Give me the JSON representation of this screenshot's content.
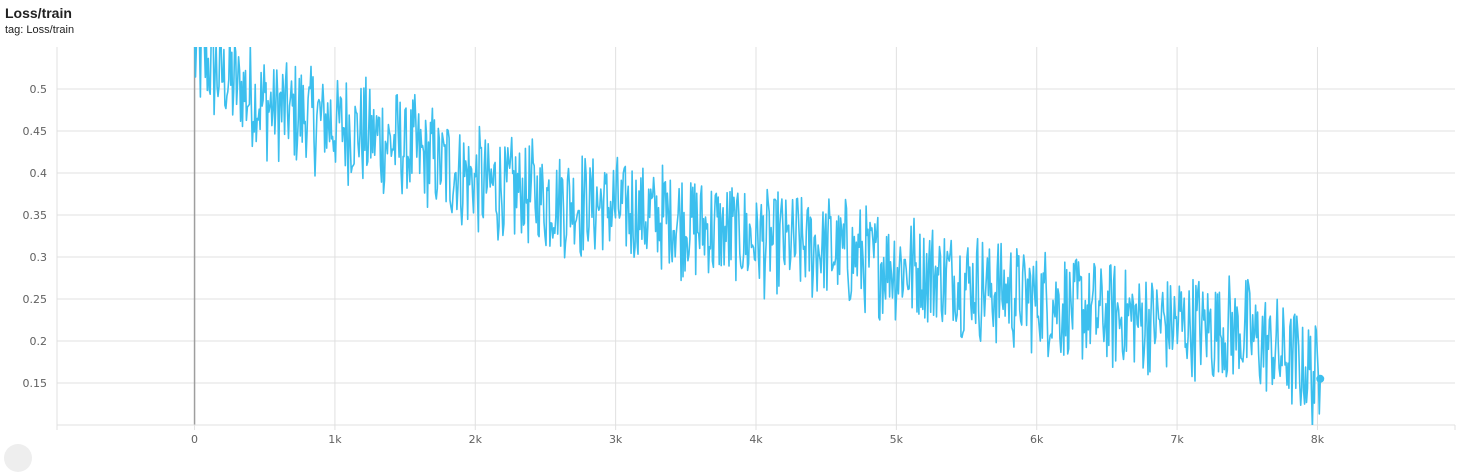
{
  "header": {
    "title": "Loss/train",
    "tag_line": "tag: Loss/train"
  },
  "colors": {
    "series": "#3cbfee",
    "grid": "#e0e0e0",
    "zero_line": "#9e9e9e",
    "tick_text": "#616161"
  },
  "chart_data": {
    "type": "line",
    "title": "Loss/train",
    "xlabel": "",
    "ylabel": "",
    "xlim": [
      -980,
      8980
    ],
    "ylim": [
      0.1,
      0.55
    ],
    "grid": true,
    "legend": "none",
    "x_ticks": [
      0,
      1000,
      2000,
      3000,
      4000,
      5000,
      6000,
      7000,
      8000
    ],
    "x_tick_labels": [
      "0",
      "1k",
      "2k",
      "3k",
      "4k",
      "5k",
      "6k",
      "7k",
      "8k"
    ],
    "y_ticks": [
      0.15,
      0.2,
      0.25,
      0.3,
      0.35,
      0.4,
      0.45,
      0.5
    ],
    "y_tick_labels": [
      "0.15",
      "0.2",
      "0.25",
      "0.3",
      "0.35",
      "0.4",
      "0.45",
      "0.5"
    ],
    "series": [
      {
        "x": [
          0,
          500,
          1000,
          1500,
          2000,
          2500,
          3000,
          3500,
          4000,
          4500,
          5000,
          5500,
          6000,
          6500,
          7000,
          7500,
          8020
        ],
        "y": [
          0.54,
          0.48,
          0.46,
          0.43,
          0.39,
          0.37,
          0.36,
          0.34,
          0.32,
          0.31,
          0.29,
          0.27,
          0.25,
          0.23,
          0.22,
          0.21,
          0.155
        ]
      }
    ]
  }
}
